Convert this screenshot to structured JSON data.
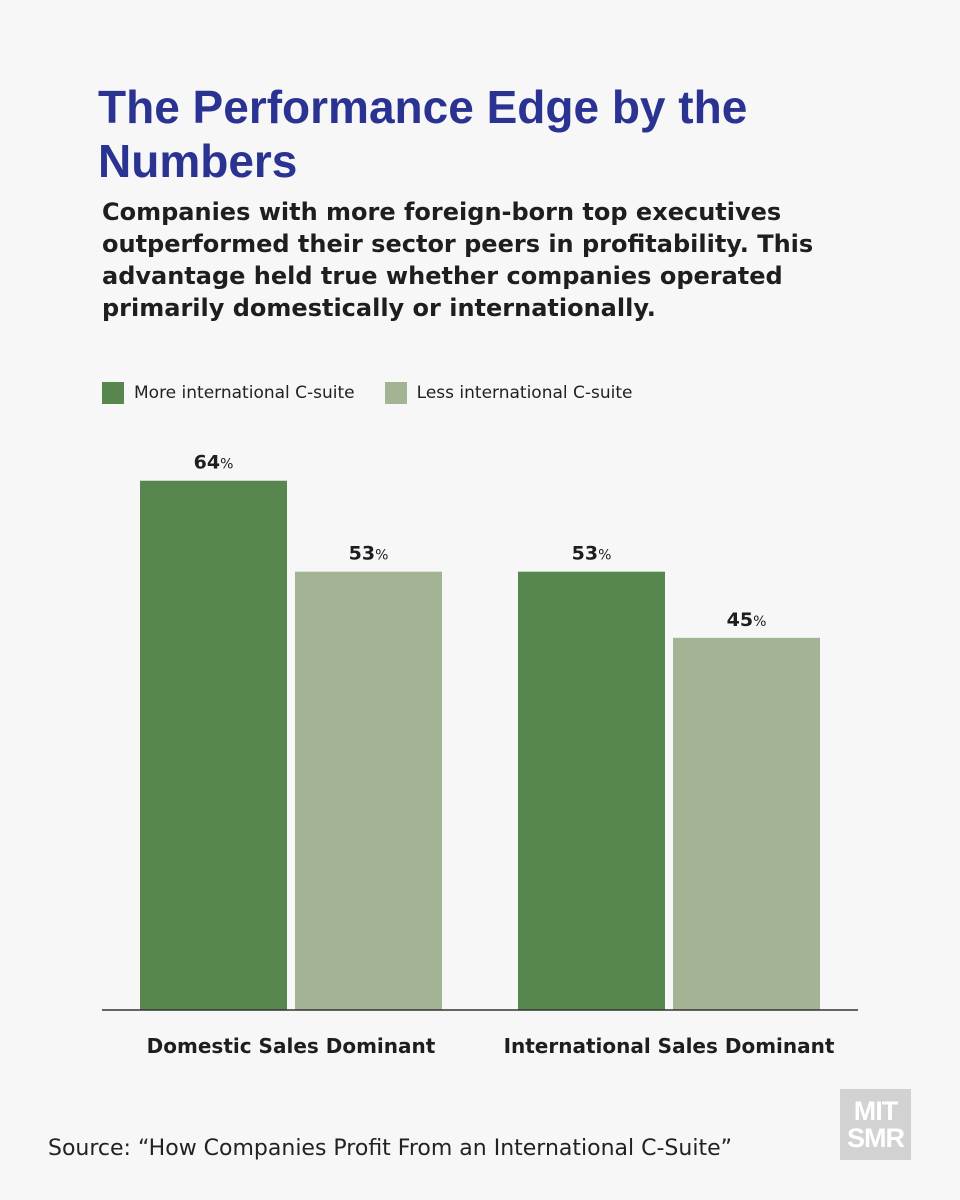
{
  "title": "The Performance Edge by the Numbers",
  "subtitle": "Companies with more foreign-born top executives outperformed their sector peers in profitability. This advantage held true whether companies operated primarily domestically or internationally.",
  "source": "Source: “How Companies Profit From an International C-Suite”",
  "logo": {
    "line1": "MIT",
    "line2": "SMR"
  },
  "colors": {
    "more": "#57874f",
    "less": "#a2b494",
    "title": "#2a3292"
  },
  "chart_data": {
    "type": "bar",
    "categories": [
      "Domestic Sales Dominant",
      "International Sales Dominant"
    ],
    "series": [
      {
        "name": "More international C-suite",
        "values": [
          64,
          53
        ]
      },
      {
        "name": "Less international C-suite",
        "values": [
          53,
          45
        ]
      }
    ],
    "value_suffix": "%",
    "ylim": [
      0,
      100
    ],
    "grid": false,
    "legend": "top-left",
    "xlabel": "",
    "ylabel": ""
  }
}
